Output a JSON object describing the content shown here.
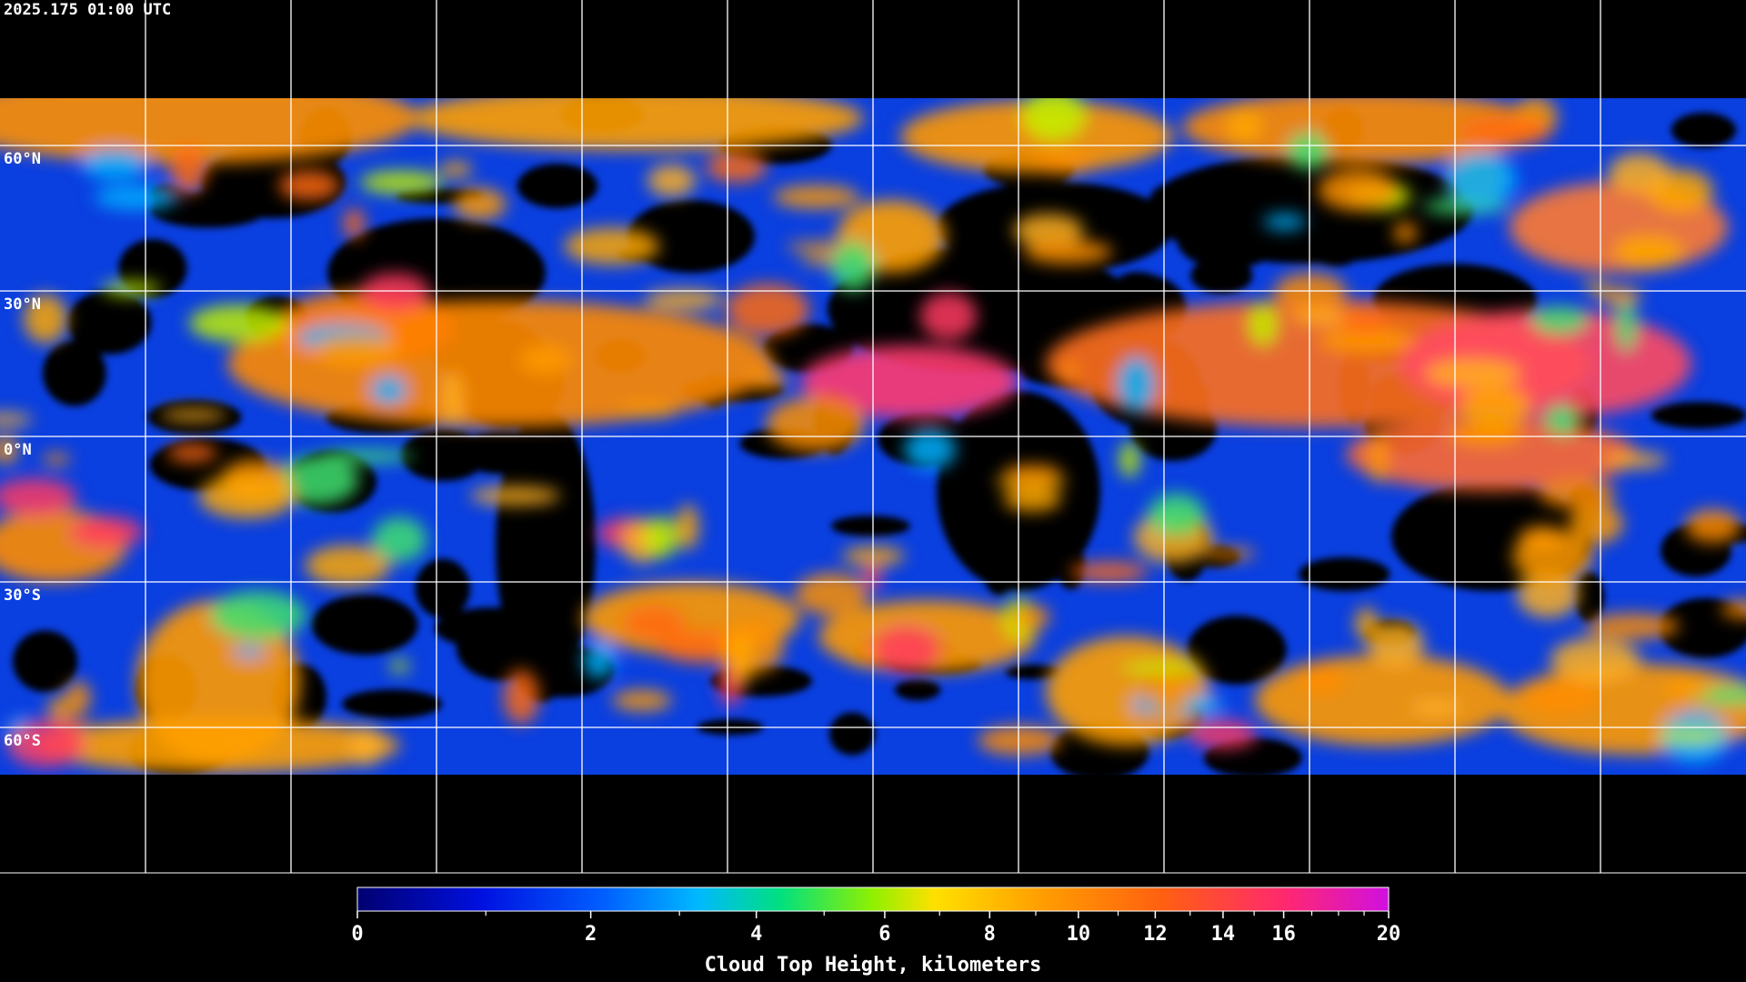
{
  "map": {
    "timestamp": "2025.175 01:00 UTC",
    "lat_labels": [
      "60°N",
      "30°N",
      "0°N",
      "30°S",
      "60°S"
    ],
    "colorbar": {
      "title": "Cloud Top Height, kilometers",
      "range": [
        0,
        20
      ],
      "ticks": [
        0,
        2,
        4,
        6,
        8,
        10,
        12,
        14,
        16,
        20
      ],
      "minor_ticks": [
        1,
        3,
        5,
        7,
        9,
        11,
        13,
        15,
        17,
        18,
        19
      ]
    }
  }
}
